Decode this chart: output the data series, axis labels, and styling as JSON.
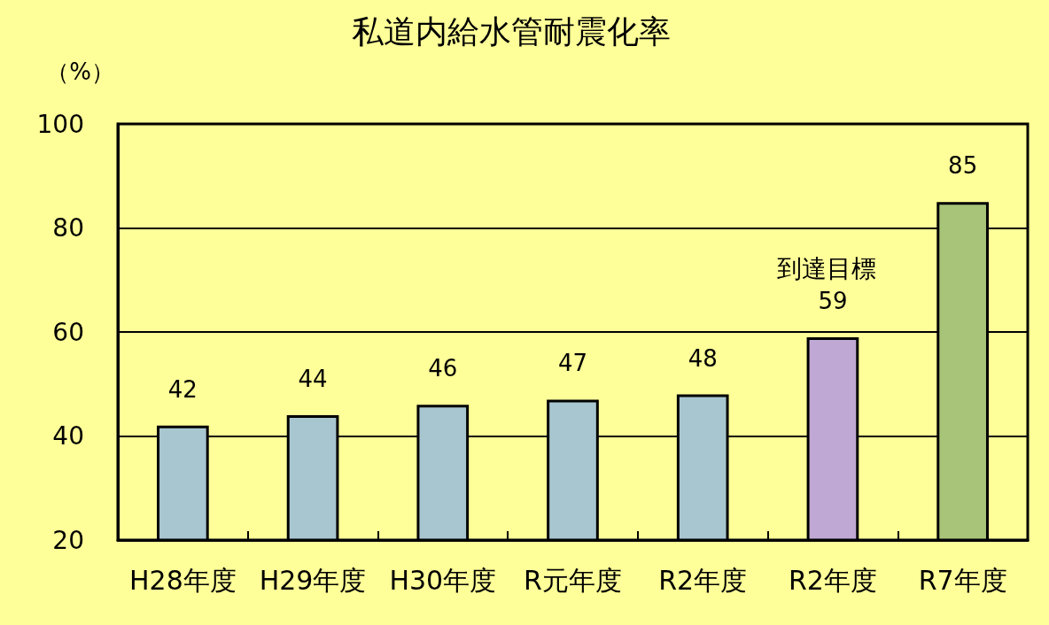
{
  "chart_data": {
    "type": "bar",
    "title": "私道内給水管耐震化率",
    "ylabel": "（%）",
    "categories": [
      "H28年度",
      "H29年度",
      "H30年度",
      "R元年度",
      "R2年度",
      "R2年度",
      "R7年度"
    ],
    "values": [
      42,
      44,
      46,
      47,
      48,
      59,
      85
    ],
    "colors": [
      "#a8c6d0",
      "#a8c6d0",
      "#a8c6d0",
      "#a8c6d0",
      "#a8c6d0",
      "#c0a8d4",
      "#a8c478"
    ],
    "ylim": [
      20,
      100
    ],
    "yticks": [
      20,
      40,
      60,
      80,
      100
    ],
    "grid": "y",
    "data_labels": true,
    "annotations": [
      "到達目標"
    ]
  }
}
